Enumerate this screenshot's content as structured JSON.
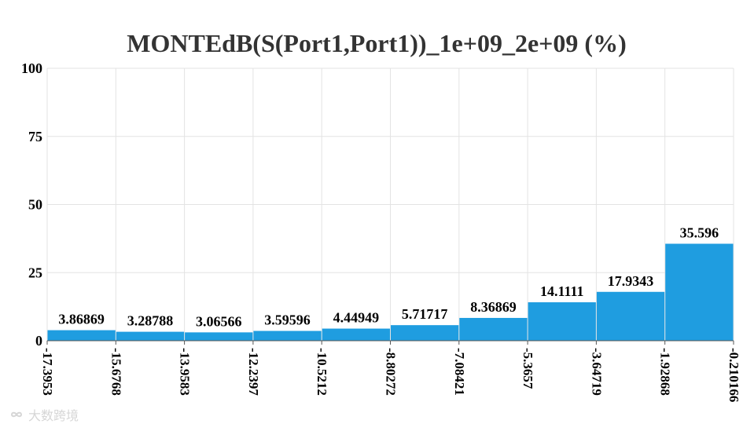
{
  "chart_data": {
    "type": "bar",
    "title": "MONTEdB(S(Port1,Port1))_1e+09_2e+09 (%)",
    "xlabel": "",
    "ylabel": "",
    "ylim": [
      0,
      100
    ],
    "yticks": [
      "0",
      "25",
      "50",
      "75",
      "100"
    ],
    "bin_edges": [
      "-17.3953",
      "-15.6768",
      "-13.9583",
      "-12.2397",
      "-10.5212",
      "-8.80272",
      "-7.08421",
      "-5.3657",
      "-3.64719",
      "-1.92868",
      "-0.210166"
    ],
    "values": [
      3.86869,
      3.28788,
      3.06566,
      3.59596,
      4.44949,
      5.71717,
      8.36869,
      14.1111,
      17.9343,
      35.596
    ],
    "value_labels": [
      "3.86869",
      "3.28788",
      "3.06566",
      "3.59596",
      "4.44949",
      "5.71717",
      "8.36869",
      "14.1111",
      "17.9343",
      "35.596"
    ],
    "bar_color": "#1f9de0",
    "grid": true,
    "legend": "none"
  },
  "watermark": {
    "text": "大数跨境",
    "icon": "infinity-logo-icon"
  }
}
